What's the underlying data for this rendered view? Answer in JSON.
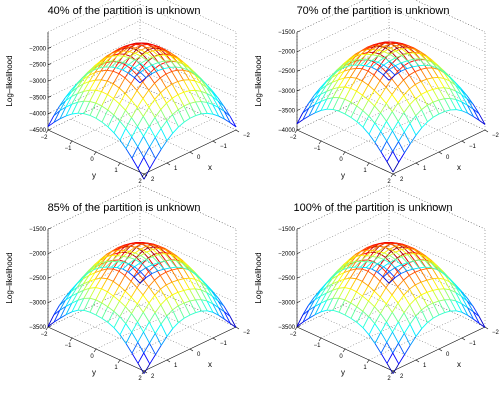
{
  "chart_data": [
    {
      "type": "surface",
      "title": "40% of the partition is unknown",
      "xlabel": "x",
      "ylabel": "y",
      "zlabel": "Log–likelihood",
      "xlim": [
        -2,
        2
      ],
      "ylim": [
        -2,
        2
      ],
      "zlim": [
        -4500,
        -1500
      ],
      "x_ticks": [
        "2",
        "1",
        "0",
        "−1",
        "−2"
      ],
      "y_ticks": [
        "−2",
        "−1",
        "0",
        "1",
        "2"
      ],
      "z_ticks": [
        "−2000",
        "−2500",
        "−3000",
        "−3500",
        "−4000",
        "−4500"
      ],
      "z_tick_values": [
        -2000,
        -2500,
        -3000,
        -3500,
        -4000,
        -4500
      ],
      "surface": {
        "peak": -1900,
        "min_corner": -4400,
        "wing": -3650,
        "noise": 15
      },
      "grid": true,
      "colormap": "jet"
    },
    {
      "type": "surface",
      "title": "70% of the partition is unknown",
      "xlabel": "x",
      "ylabel": "y",
      "zlabel": "Log–likelihood",
      "xlim": [
        -2,
        2
      ],
      "ylim": [
        -2,
        2
      ],
      "zlim": [
        -4000,
        -1500
      ],
      "x_ticks": [
        "2",
        "1",
        "0",
        "−1",
        "−2"
      ],
      "y_ticks": [
        "−2",
        "−1",
        "0",
        "1",
        "2"
      ],
      "z_ticks": [
        "−1500",
        "−2000",
        "−2500",
        "−3000",
        "−3500",
        "−4000"
      ],
      "z_tick_values": [
        -1500,
        -2000,
        -2500,
        -3000,
        -3500,
        -4000
      ],
      "surface": {
        "peak": -1800,
        "min_corner": -3850,
        "wing": -2500,
        "noise": 25
      },
      "grid": true,
      "colormap": "jet"
    },
    {
      "type": "surface",
      "title": "85% of the partition is unknown",
      "xlabel": "x",
      "ylabel": "y",
      "zlabel": "Log–likelihood",
      "xlim": [
        -2,
        2
      ],
      "ylim": [
        -2,
        2
      ],
      "zlim": [
        -3500,
        -1500
      ],
      "x_ticks": [
        "2",
        "1",
        "0",
        "−1",
        "−2"
      ],
      "y_ticks": [
        "−2",
        "−1",
        "0",
        "1",
        "2"
      ],
      "z_ticks": [
        "−1500",
        "−2000",
        "−2500",
        "−3000",
        "−3500"
      ],
      "z_tick_values": [
        -1500,
        -2000,
        -2500,
        -3000,
        -3500
      ],
      "surface": {
        "peak": -1800,
        "min_corner": -3500,
        "wing": -2200,
        "noise": 30
      },
      "grid": true,
      "colormap": "jet"
    },
    {
      "type": "surface",
      "title": "100% of the partition is unknown",
      "xlabel": "x",
      "ylabel": "y",
      "zlabel": "Log–likelihood",
      "xlim": [
        -2,
        2
      ],
      "ylim": [
        -2,
        2
      ],
      "zlim": [
        -3500,
        -1500
      ],
      "x_ticks": [
        "2",
        "1",
        "0",
        "−1",
        "−2"
      ],
      "y_ticks": [
        "−2",
        "−1",
        "0",
        "1",
        "2"
      ],
      "z_ticks": [
        "−1500",
        "−2000",
        "−2500",
        "−3000",
        "−3500"
      ],
      "z_tick_values": [
        -1500,
        -2000,
        -2500,
        -3000,
        -3500
      ],
      "surface": {
        "peak": -1800,
        "min_corner": -3500,
        "wing": -2200,
        "noise": 30
      },
      "grid": true,
      "colormap": "jet"
    }
  ]
}
